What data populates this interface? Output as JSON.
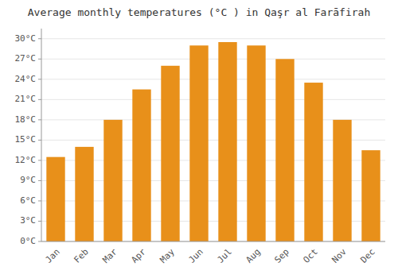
{
  "chart_data": {
    "type": "bar",
    "title": "Average monthly temperatures (°C ) in Qaşr al Farāfirah",
    "categories": [
      "Jan",
      "Feb",
      "Mar",
      "Apr",
      "May",
      "Jun",
      "Jul",
      "Aug",
      "Sep",
      "Oct",
      "Nov",
      "Dec"
    ],
    "values": [
      12.5,
      14.0,
      18.0,
      22.5,
      26.0,
      29.0,
      29.5,
      29.0,
      27.0,
      23.5,
      18.0,
      13.5
    ],
    "color": "#E8901A",
    "ylim": [
      0,
      31.5
    ],
    "yticks": [
      {
        "value": 0,
        "label": "0°C"
      },
      {
        "value": 3,
        "label": "3°C"
      },
      {
        "value": 6,
        "label": "6°C"
      },
      {
        "value": 9,
        "label": "9°C"
      },
      {
        "value": 12,
        "label": "12°C"
      },
      {
        "value": 15,
        "label": "15°C"
      },
      {
        "value": 18,
        "label": "18°C"
      },
      {
        "value": 21,
        "label": "21°C"
      },
      {
        "value": 24,
        "label": "24°C"
      },
      {
        "value": 27,
        "label": "27°C"
      },
      {
        "value": 30,
        "label": "30°C"
      }
    ],
    "grid": true
  }
}
